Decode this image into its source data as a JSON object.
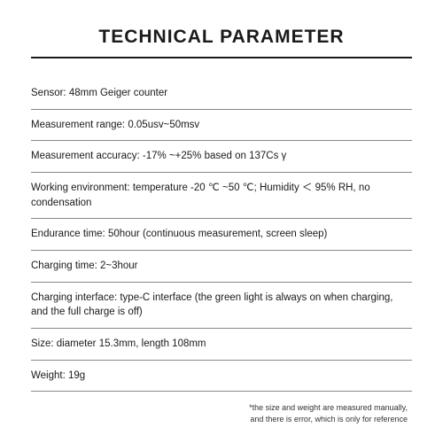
{
  "title": "TECHNICAL PARAMETER",
  "specs": [
    {
      "label": "Sensor:",
      "value": " 48mm Geiger counter"
    },
    {
      "label": "Measurement range:",
      "value": " 0.05usv~50msv"
    },
    {
      "label": "Measurement accuracy:",
      "value": " -17% ~+25% based on 137Cs γ"
    },
    {
      "label": "Working environment:",
      "value": " temperature -20 ℃ ~50 ℃; Humidity ＜ 95% RH, no condensation"
    },
    {
      "label": "Endurance time:",
      "value": " 50hour (continuous measurement, screen sleep)"
    },
    {
      "label": "Charging time:",
      "value": " 2~3hour"
    },
    {
      "label": "Charging interface:",
      "value": " type-C interface (the green light is always on when charging, and the full charge is off)"
    },
    {
      "label": "Size:",
      "value": " diameter 15.3mm, length 108mm"
    },
    {
      "label": "Weight:",
      "value": " 19g"
    }
  ],
  "footnote_line1": "*the size and weight are measured manually,",
  "footnote_line2": "and there is error, which is only for reference",
  "colors": {
    "background": "#ffffff",
    "text": "#1a1a1a",
    "divider": "#888888",
    "title_underline": "#1a1a1a"
  },
  "typography": {
    "title_fontsize": 21,
    "title_weight": 900,
    "row_fontsize": 11.5,
    "footnote_fontsize": 9
  }
}
